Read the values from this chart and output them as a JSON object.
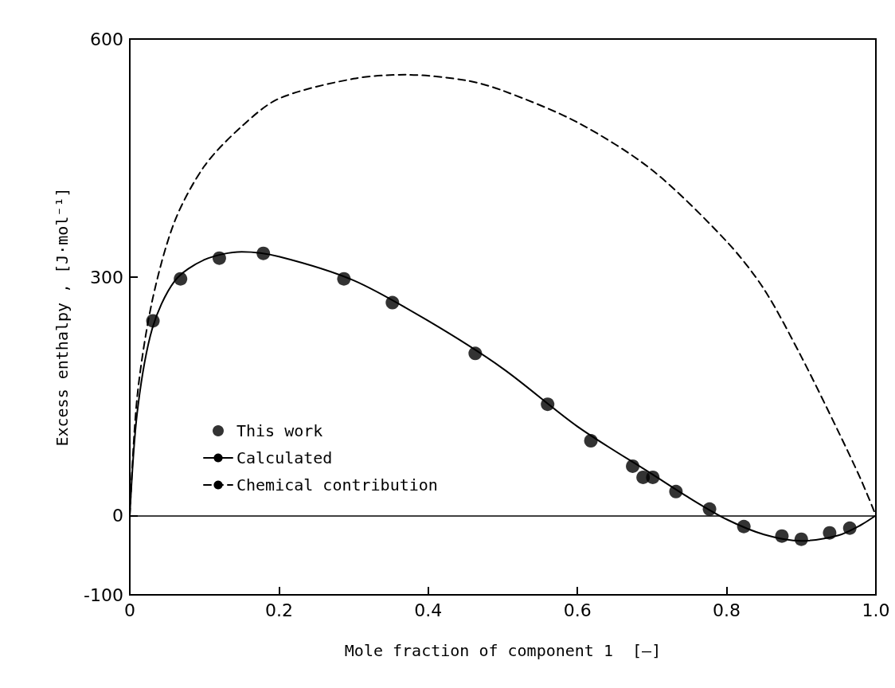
{
  "chart_data": {
    "type": "line",
    "xlabel": "Mole fraction of component 1  [—]",
    "ylabel": "Excess enthalpy , [J·mol⁻¹]",
    "xlim": [
      0,
      1
    ],
    "xticks": [
      0,
      0.2,
      0.4,
      0.6,
      0.8,
      {
        "value": 1,
        "label": "1.0"
      }
    ],
    "ylim": [
      -100,
      600
    ],
    "yticks": [
      -100,
      0,
      300,
      600
    ],
    "grid": false,
    "legend": "bottom left",
    "ref_lines": [
      {
        "axis": "y",
        "value": 0,
        "color": "#000000",
        "line_style": "solid"
      }
    ],
    "series": [
      {
        "name": "This work",
        "type": "scatter",
        "marker": "circle",
        "color": "#000000",
        "x": [
          0.031,
          0.068,
          0.12,
          0.179,
          0.287,
          0.352,
          0.463,
          0.56,
          0.618,
          0.674,
          0.688,
          0.701,
          0.732,
          0.777,
          0.823,
          0.874,
          0.9,
          0.938,
          0.965
        ],
        "values": [
          245,
          298,
          324,
          330,
          298,
          268,
          204,
          140,
          94,
          62,
          48,
          48,
          30,
          8,
          -14,
          -26,
          -30,
          -22,
          -16
        ]
      },
      {
        "name": "Calculated",
        "line_style": "solid",
        "marker": "none",
        "color": "#000000",
        "x": [
          0,
          0.01,
          0.03,
          0.06,
          0.1,
          0.15,
          0.2,
          0.3,
          0.4,
          0.5,
          0.6,
          0.7,
          0.75,
          0.8,
          0.85,
          0.9,
          0.95,
          0.98,
          1.0
        ],
        "values": [
          0,
          130,
          235,
          295,
          322,
          332,
          326,
          296,
          245,
          185,
          112,
          52,
          22,
          -5,
          -24,
          -32,
          -25,
          -12,
          0
        ]
      },
      {
        "name": "Chemical contribution",
        "line_style": "dashed",
        "marker": "none",
        "color": "#000000",
        "x": [
          0,
          0.01,
          0.03,
          0.06,
          0.1,
          0.15,
          0.2,
          0.3,
          0.37,
          0.45,
          0.5,
          0.6,
          0.7,
          0.8,
          0.85,
          0.9,
          0.95,
          0.98,
          1.0
        ],
        "values": [
          0,
          150,
          270,
          370,
          440,
          490,
          525,
          550,
          555,
          548,
          535,
          495,
          435,
          345,
          285,
          200,
          105,
          45,
          0
        ]
      }
    ]
  }
}
